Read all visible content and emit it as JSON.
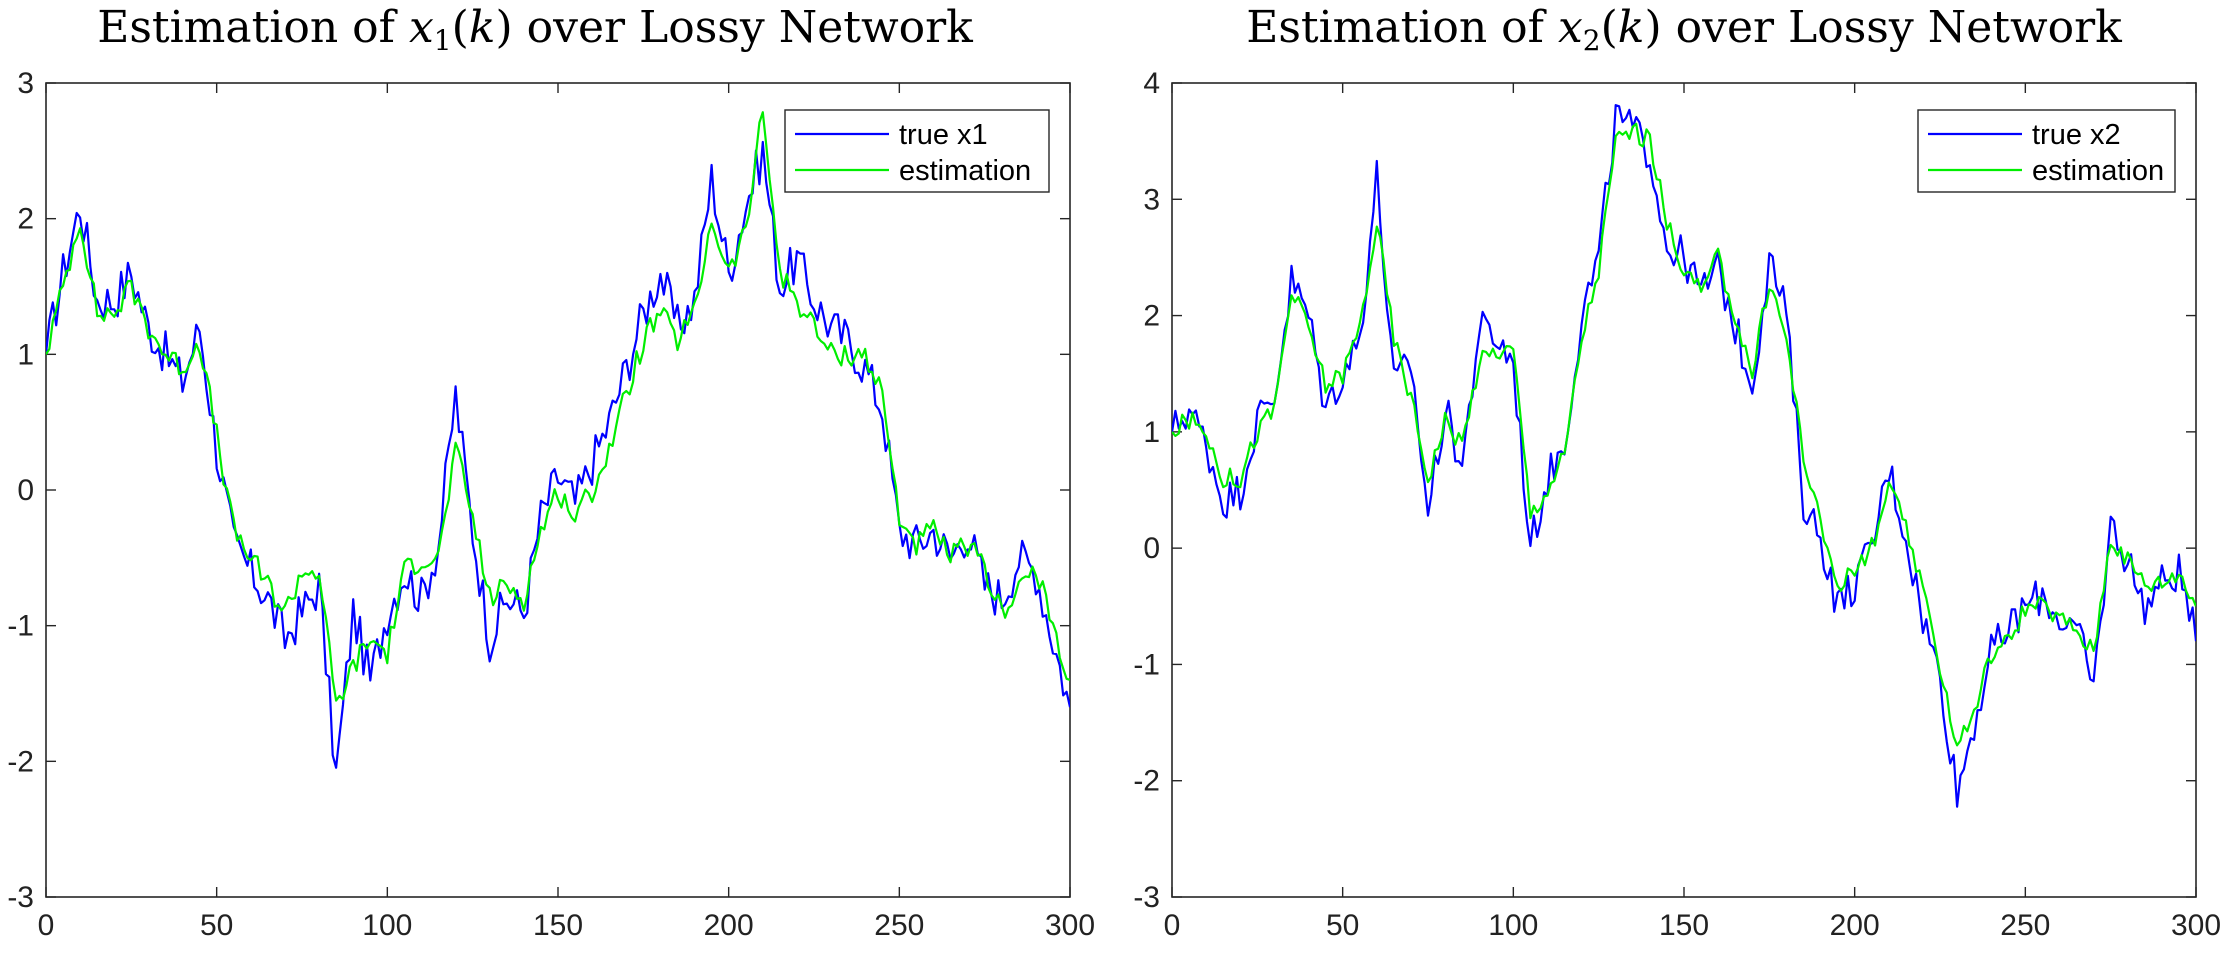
{
  "figure": {
    "panels": [
      "left",
      "right"
    ]
  },
  "chart_data": [
    {
      "type": "line",
      "title": "Estimation of x1(k) over Lossy Network",
      "title_parts": {
        "prefix": "Estimation of ",
        "var": "x",
        "sub": "1",
        "arg": "(k)",
        "suffix": " over Lossy Network"
      },
      "xlabel": "",
      "ylabel": "",
      "xlim": [
        0,
        300
      ],
      "ylim": [
        -3,
        3
      ],
      "xticks": [
        0,
        50,
        100,
        150,
        200,
        250,
        300
      ],
      "yticks": [
        -3,
        -2,
        -1,
        0,
        1,
        2,
        3
      ],
      "grid": false,
      "legend_position": "top-right",
      "x": [
        0,
        5,
        10,
        15,
        20,
        25,
        30,
        35,
        40,
        45,
        50,
        55,
        60,
        65,
        70,
        75,
        80,
        85,
        90,
        95,
        100,
        105,
        110,
        115,
        120,
        125,
        130,
        135,
        140,
        145,
        150,
        155,
        160,
        165,
        170,
        175,
        180,
        185,
        190,
        195,
        200,
        205,
        210,
        215,
        220,
        225,
        230,
        235,
        240,
        245,
        250,
        255,
        260,
        265,
        270,
        275,
        280,
        285,
        290,
        295,
        300
      ],
      "series": [
        {
          "name": "true x1",
          "color": "#0000ff",
          "values": [
            1.0,
            1.6,
            2.1,
            1.4,
            1.4,
            1.6,
            1.2,
            1.0,
            0.8,
            1.2,
            0.3,
            -0.4,
            -0.6,
            -0.8,
            -1.1,
            -0.9,
            -0.7,
            -2.1,
            -0.9,
            -1.4,
            -0.9,
            -0.6,
            -0.8,
            -0.4,
            0.7,
            -0.3,
            -1.1,
            -0.8,
            -0.9,
            -0.2,
            0.1,
            -0.1,
            0.2,
            0.5,
            0.9,
            1.3,
            1.6,
            1.2,
            1.4,
            2.3,
            1.6,
            2.1,
            2.5,
            1.5,
            1.7,
            1.4,
            1.2,
            1.1,
            0.9,
            0.6,
            -0.3,
            -0.4,
            -0.3,
            -0.5,
            -0.3,
            -0.7,
            -0.8,
            -0.5,
            -0.6,
            -1.1,
            -1.6
          ]
        },
        {
          "name": "estimation",
          "color": "#00ee00",
          "values": [
            1.0,
            1.5,
            2.0,
            1.3,
            1.3,
            1.5,
            1.2,
            1.0,
            0.9,
            1.1,
            0.4,
            -0.3,
            -0.5,
            -0.7,
            -0.9,
            -0.6,
            -0.6,
            -1.6,
            -1.3,
            -1.1,
            -1.2,
            -0.6,
            -0.5,
            -0.5,
            0.3,
            -0.2,
            -0.8,
            -0.7,
            -0.8,
            -0.3,
            0.0,
            -0.2,
            0.0,
            0.3,
            0.7,
            1.1,
            1.3,
            1.1,
            1.3,
            2.0,
            1.6,
            1.9,
            2.8,
            1.6,
            1.4,
            1.2,
            1.0,
            1.0,
            1.0,
            0.7,
            -0.2,
            -0.4,
            -0.3,
            -0.5,
            -0.4,
            -0.6,
            -0.9,
            -0.7,
            -0.6,
            -1.0,
            -1.4
          ]
        }
      ]
    },
    {
      "type": "line",
      "title": "Estimation of x2(k) over Lossy Network",
      "title_parts": {
        "prefix": "Estimation of ",
        "var": "x",
        "sub": "2",
        "arg": "(k)",
        "suffix": " over Lossy Network"
      },
      "xlabel": "",
      "ylabel": "",
      "xlim": [
        0,
        300
      ],
      "ylim": [
        -3,
        4
      ],
      "xticks": [
        0,
        50,
        100,
        150,
        200,
        250,
        300
      ],
      "yticks": [
        -3,
        -2,
        -1,
        0,
        1,
        2,
        3,
        4
      ],
      "grid": false,
      "legend_position": "top-right",
      "x": [
        0,
        5,
        10,
        15,
        20,
        25,
        30,
        35,
        40,
        45,
        50,
        55,
        60,
        65,
        70,
        75,
        80,
        85,
        90,
        95,
        100,
        105,
        110,
        115,
        120,
        125,
        130,
        135,
        140,
        145,
        150,
        155,
        160,
        165,
        170,
        175,
        180,
        185,
        190,
        195,
        200,
        205,
        210,
        215,
        220,
        225,
        230,
        235,
        240,
        245,
        250,
        255,
        260,
        265,
        270,
        275,
        280,
        285,
        290,
        295,
        300
      ],
      "series": [
        {
          "name": "true x2",
          "color": "#0000ff",
          "values": [
            1.0,
            1.2,
            0.9,
            0.4,
            0.5,
            1.1,
            1.3,
            2.3,
            2.0,
            1.2,
            1.5,
            1.8,
            3.2,
            1.4,
            1.6,
            0.3,
            1.2,
            0.7,
            1.9,
            1.8,
            1.6,
            0.0,
            0.6,
            0.9,
            2.0,
            2.5,
            3.7,
            3.6,
            3.4,
            2.6,
            2.5,
            2.2,
            2.4,
            1.9,
            1.4,
            2.5,
            2.0,
            0.4,
            0.1,
            -0.5,
            -0.3,
            0.0,
            0.7,
            0.1,
            -0.6,
            -1.1,
            -2.1,
            -1.5,
            -0.9,
            -0.7,
            -0.5,
            -0.4,
            -0.6,
            -0.7,
            -1.2,
            0.2,
            -0.1,
            -0.5,
            -0.3,
            -0.2,
            -0.8
          ]
        },
        {
          "name": "estimation",
          "color": "#00ee00",
          "values": [
            1.0,
            1.1,
            1.0,
            0.6,
            0.6,
            1.0,
            1.2,
            2.2,
            1.9,
            1.4,
            1.5,
            1.9,
            2.8,
            1.8,
            1.3,
            0.6,
            1.1,
            0.9,
            1.6,
            1.7,
            1.7,
            0.3,
            0.5,
            0.8,
            1.8,
            2.4,
            3.5,
            3.6,
            3.5,
            2.8,
            2.4,
            2.2,
            2.5,
            2.0,
            1.5,
            2.3,
            1.8,
            0.8,
            0.2,
            -0.3,
            -0.2,
            0.0,
            0.5,
            0.2,
            -0.4,
            -1.0,
            -1.7,
            -1.4,
            -0.9,
            -0.8,
            -0.5,
            -0.5,
            -0.6,
            -0.7,
            -0.9,
            0.1,
            -0.1,
            -0.3,
            -0.3,
            -0.2,
            -0.5
          ]
        }
      ]
    }
  ]
}
